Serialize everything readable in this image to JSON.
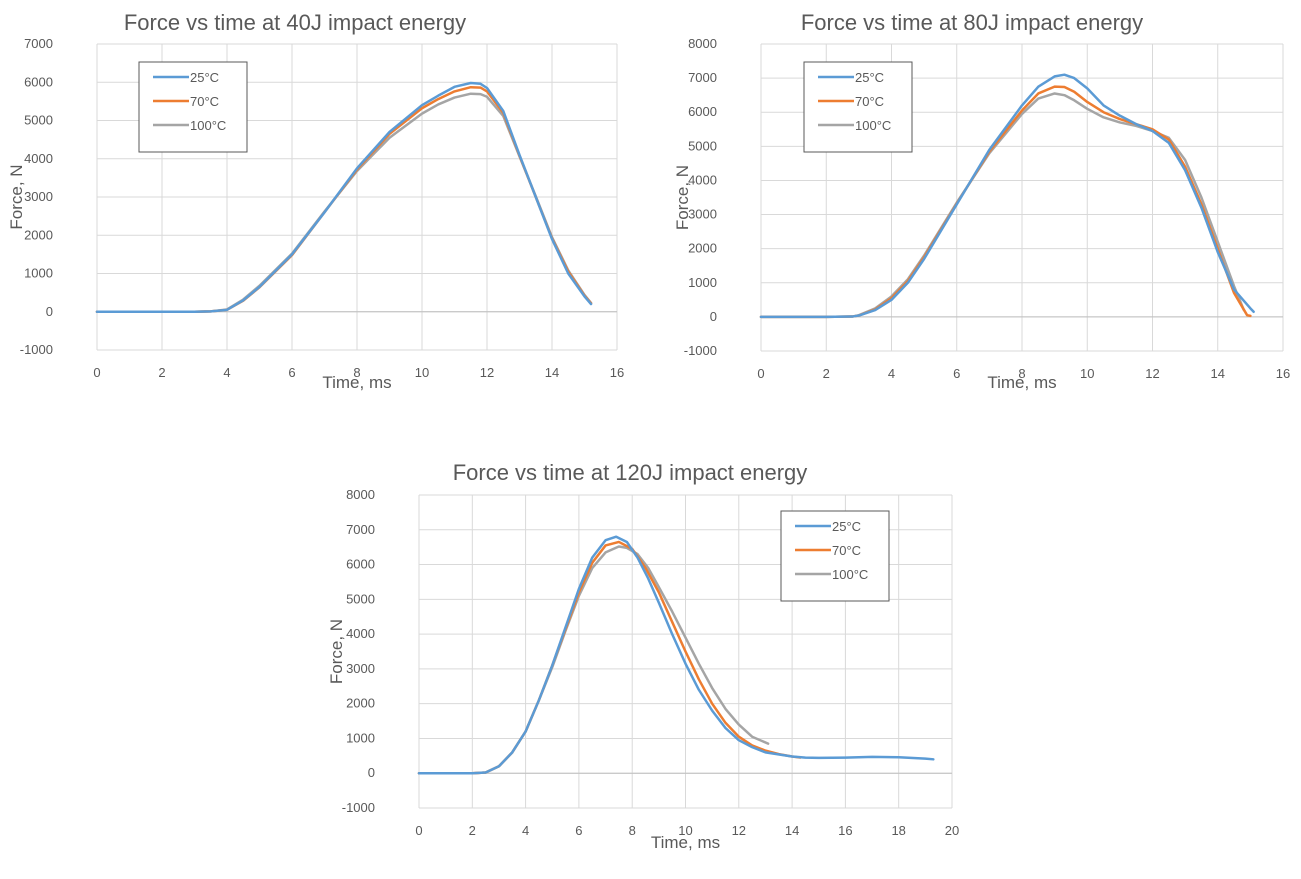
{
  "chart_data": [
    {
      "type": "line",
      "title": "Force vs time at 40J impact energy",
      "xlabel": "Time, ms",
      "ylabel": "Force, N",
      "xlim": [
        0,
        16
      ],
      "ylim": [
        -1000,
        7000
      ],
      "xticks": [
        0,
        2,
        4,
        6,
        8,
        10,
        12,
        14,
        16
      ],
      "yticks": [
        -1000,
        0,
        1000,
        2000,
        3000,
        4000,
        5000,
        6000,
        7000
      ],
      "grid": true,
      "legend_position": "top-left",
      "series": [
        {
          "name": "25°C",
          "color": "#5b9bd5",
          "x": [
            0,
            2,
            3,
            3.5,
            4,
            4.5,
            5,
            6,
            7,
            8,
            9,
            10,
            10.5,
            11,
            11.5,
            11.8,
            12,
            12.5,
            13,
            13.5,
            14,
            14.5,
            15,
            15.2
          ],
          "y": [
            0,
            0,
            0,
            10,
            50,
            300,
            650,
            1500,
            2600,
            3750,
            4700,
            5400,
            5650,
            5880,
            5980,
            5960,
            5850,
            5250,
            4100,
            3000,
            1900,
            1000,
            400,
            200
          ]
        },
        {
          "name": "70°C",
          "color": "#ed7d31",
          "x": [
            0,
            2,
            3,
            3.5,
            4,
            4.5,
            5,
            6,
            7,
            8,
            9,
            10,
            10.5,
            11,
            11.5,
            11.8,
            12,
            12.5,
            13,
            13.5,
            14,
            14.5,
            15,
            15.2
          ],
          "y": [
            0,
            0,
            0,
            10,
            50,
            290,
            640,
            1480,
            2600,
            3720,
            4650,
            5320,
            5560,
            5760,
            5870,
            5860,
            5760,
            5200,
            4080,
            3000,
            1920,
            1050,
            420,
            220
          ]
        },
        {
          "name": "100°C",
          "color": "#a5a5a5",
          "x": [
            0,
            2,
            3,
            3.5,
            4,
            4.5,
            5,
            6,
            7,
            8,
            9,
            10,
            10.5,
            11,
            11.5,
            11.8,
            12,
            12.5,
            13,
            13.5,
            14,
            14.5,
            15,
            15.2
          ],
          "y": [
            0,
            0,
            0,
            10,
            60,
            320,
            680,
            1520,
            2620,
            3680,
            4550,
            5180,
            5420,
            5600,
            5700,
            5690,
            5620,
            5120,
            4060,
            3020,
            1950,
            1080,
            440,
            230
          ]
        }
      ]
    },
    {
      "type": "line",
      "title": "Force vs time at 80J impact energy",
      "xlabel": "Time, ms",
      "ylabel": "Force, N",
      "xlim": [
        0,
        16
      ],
      "ylim": [
        -1000,
        8000
      ],
      "xticks": [
        0,
        2,
        4,
        6,
        8,
        10,
        12,
        14,
        16
      ],
      "yticks": [
        -1000,
        0,
        1000,
        2000,
        3000,
        4000,
        5000,
        6000,
        7000,
        8000
      ],
      "grid": true,
      "legend_position": "top-left",
      "series": [
        {
          "name": "25°C",
          "color": "#5b9bd5",
          "x": [
            0,
            2,
            2.8,
            3,
            3.5,
            4,
            4.5,
            5,
            6,
            7,
            8,
            8.5,
            9,
            9.3,
            9.6,
            10,
            10.5,
            11,
            11.5,
            12,
            12.5,
            13,
            13.5,
            14,
            14.5,
            15,
            15.1
          ],
          "y": [
            0,
            0,
            10,
            40,
            200,
            500,
            1000,
            1700,
            3300,
            4900,
            6200,
            6750,
            7050,
            7100,
            7000,
            6700,
            6200,
            5900,
            5650,
            5450,
            5100,
            4300,
            3200,
            1900,
            800,
            250,
            150
          ]
        },
        {
          "name": "70°C",
          "color": "#ed7d31",
          "x": [
            0,
            2,
            2.8,
            3,
            3.5,
            4,
            4.5,
            5,
            6,
            7,
            8,
            8.5,
            9,
            9.3,
            9.6,
            10,
            10.5,
            11,
            11.5,
            12,
            12.5,
            13,
            13.5,
            14,
            14.5,
            14.9,
            15
          ],
          "y": [
            0,
            0,
            10,
            40,
            220,
            550,
            1050,
            1750,
            3320,
            4850,
            6050,
            6550,
            6750,
            6740,
            6600,
            6300,
            6000,
            5800,
            5650,
            5500,
            5200,
            4400,
            3300,
            2000,
            700,
            50,
            30
          ]
        },
        {
          "name": "100°C",
          "color": "#a5a5a5",
          "x": [
            0,
            2,
            2.8,
            3,
            3.5,
            4,
            4.5,
            5,
            6,
            7,
            8,
            8.5,
            9,
            9.3,
            9.6,
            10,
            10.5,
            11,
            11.5,
            12,
            12.5,
            13,
            13.5,
            14,
            14.5,
            14.8
          ],
          "y": [
            0,
            0,
            10,
            50,
            250,
            600,
            1100,
            1800,
            3350,
            4800,
            5950,
            6400,
            6550,
            6500,
            6350,
            6100,
            5850,
            5700,
            5600,
            5450,
            5250,
            4600,
            3500,
            2200,
            900,
            200
          ]
        }
      ]
    },
    {
      "type": "line",
      "title": "Force vs time at 120J impact energy",
      "xlabel": "Time, ms",
      "ylabel": "Force, N",
      "xlim": [
        0,
        20
      ],
      "ylim": [
        -1000,
        8000
      ],
      "xticks": [
        0,
        2,
        4,
        6,
        8,
        10,
        12,
        14,
        16,
        18,
        20
      ],
      "yticks": [
        -1000,
        0,
        1000,
        2000,
        3000,
        4000,
        5000,
        6000,
        7000,
        8000
      ],
      "grid": true,
      "legend_position": "top-right",
      "series": [
        {
          "name": "25°C",
          "color": "#5b9bd5",
          "x": [
            0,
            2,
            2.5,
            3,
            3.5,
            4,
            4.5,
            5,
            5.5,
            6,
            6.5,
            7,
            7.4,
            7.8,
            8.2,
            8.6,
            9,
            9.5,
            10,
            10.5,
            11,
            11.5,
            12,
            12.5,
            13,
            14,
            14.5,
            15,
            16,
            17,
            18,
            19,
            19.3
          ],
          "y": [
            0,
            0,
            20,
            200,
            600,
            1200,
            2100,
            3100,
            4200,
            5300,
            6200,
            6700,
            6800,
            6650,
            6200,
            5600,
            4900,
            4000,
            3150,
            2400,
            1800,
            1300,
            950,
            750,
            600,
            480,
            450,
            440,
            450,
            470,
            460,
            420,
            400
          ]
        },
        {
          "name": "70°C",
          "color": "#ed7d31",
          "x": [
            0,
            2,
            2.5,
            3,
            3.5,
            4,
            4.5,
            5,
            5.5,
            6,
            6.5,
            7,
            7.5,
            8,
            8.5,
            9,
            9.5,
            10,
            10.5,
            11,
            11.5,
            12,
            12.5,
            13,
            13.5,
            14,
            14.3
          ],
          "y": [
            0,
            0,
            20,
            200,
            600,
            1200,
            2100,
            3100,
            4150,
            5200,
            6050,
            6550,
            6650,
            6450,
            5900,
            5200,
            4350,
            3500,
            2700,
            2000,
            1450,
            1050,
            800,
            650,
            550,
            480,
            450
          ]
        },
        {
          "name": "100°C",
          "color": "#a5a5a5",
          "x": [
            0,
            2,
            2.5,
            3,
            3.5,
            4,
            4.5,
            5,
            5.5,
            6,
            6.5,
            7,
            7.5,
            7.8,
            8.2,
            8.6,
            9,
            9.5,
            10,
            10.5,
            11,
            11.5,
            12,
            12.5,
            13.1
          ],
          "y": [
            0,
            0,
            20,
            200,
            600,
            1200,
            2100,
            3050,
            4100,
            5100,
            5900,
            6350,
            6520,
            6480,
            6300,
            5900,
            5350,
            4650,
            3900,
            3150,
            2450,
            1850,
            1400,
            1050,
            850
          ]
        }
      ]
    }
  ]
}
